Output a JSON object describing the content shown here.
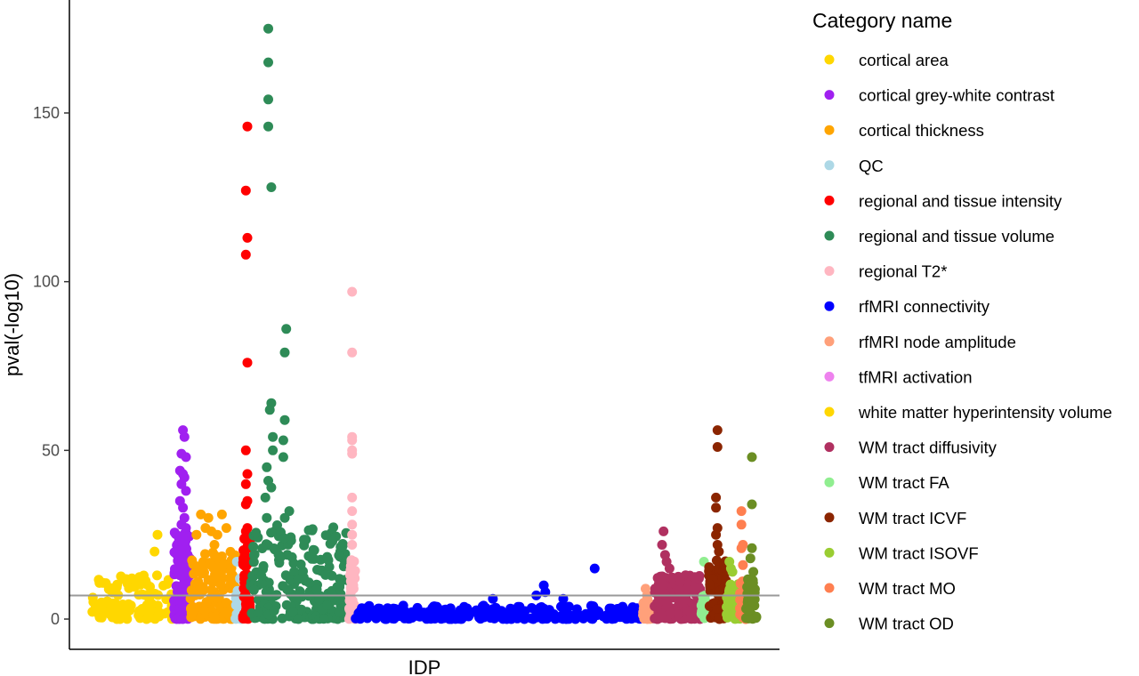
{
  "chart_data": {
    "type": "scatter",
    "subtype": "manhattan",
    "xlabel": "IDP",
    "ylabel": "pval(-log10)",
    "ylim": [
      -4,
      178
    ],
    "yticks": [
      0,
      50,
      100,
      150
    ],
    "threshold": 7,
    "threshold_color": "#999999",
    "grid": false,
    "legend": {
      "title": "Category name",
      "position": "right"
    },
    "series": [
      {
        "name": "cortical area",
        "color": "#FFD700",
        "x_range": [
          0,
          55
        ],
        "peaks": [
          [
            44,
            25
          ],
          [
            42,
            20
          ]
        ],
        "band_max": 13,
        "count": 110
      },
      {
        "name": "cortical grey-white contrast",
        "color": "#A020F0",
        "x_range": [
          55,
          66
        ],
        "peaks": [
          [
            61,
            56
          ],
          [
            62,
            54
          ],
          [
            60,
            49
          ],
          [
            63,
            48
          ],
          [
            59,
            44
          ],
          [
            61,
            43
          ],
          [
            62,
            42
          ],
          [
            60,
            40
          ],
          [
            63,
            38
          ],
          [
            59,
            35
          ],
          [
            61,
            33
          ],
          [
            62,
            30
          ],
          [
            60,
            28
          ],
          [
            63,
            27
          ]
        ],
        "band_max": 26,
        "count": 140
      },
      {
        "name": "cortical thickness",
        "color": "#FFA500",
        "x_range": [
          66,
          96
        ],
        "peaks": [
          [
            73,
            31
          ],
          [
            78,
            30
          ],
          [
            87,
            31
          ],
          [
            76,
            27
          ],
          [
            80,
            26
          ],
          [
            84,
            25
          ],
          [
            70,
            25
          ],
          [
            90,
            27
          ],
          [
            82,
            22
          ]
        ],
        "band_max": 20,
        "count": 140
      },
      {
        "name": "QC",
        "color": "#ADD8E6",
        "x_range": [
          96,
          101
        ],
        "peaks": [
          [
            97,
            17
          ],
          [
            99,
            12
          ]
        ],
        "band_max": 10,
        "count": 18
      },
      {
        "name": "regional and tissue intensity",
        "color": "#FF0000",
        "x_range": [
          101,
          106
        ],
        "peaks": [
          [
            104,
            146
          ],
          [
            103,
            127
          ],
          [
            104,
            113
          ],
          [
            103,
            108
          ],
          [
            104,
            76
          ],
          [
            103,
            50
          ],
          [
            104,
            43
          ],
          [
            103,
            40
          ],
          [
            104,
            35
          ],
          [
            103,
            34
          ],
          [
            104,
            27
          ],
          [
            103,
            26
          ]
        ],
        "band_max": 25,
        "count": 70
      },
      {
        "name": "regional and tissue volume",
        "color": "#2E8B57",
        "x_range": [
          106,
          172
        ],
        "peaks": [
          [
            118,
            175
          ],
          [
            118,
            165
          ],
          [
            118,
            154
          ],
          [
            118,
            146
          ],
          [
            120,
            128
          ],
          [
            130,
            86
          ],
          [
            129,
            79
          ],
          [
            120,
            64
          ],
          [
            119,
            62
          ],
          [
            129,
            59
          ],
          [
            121,
            54
          ],
          [
            128,
            53
          ],
          [
            121,
            50
          ],
          [
            128,
            48
          ],
          [
            117,
            45
          ],
          [
            118,
            41
          ],
          [
            120,
            39
          ],
          [
            116,
            36
          ],
          [
            132,
            32
          ],
          [
            129,
            30
          ],
          [
            117,
            30
          ]
        ],
        "band_max": 28,
        "count": 230
      },
      {
        "name": "regional T2*",
        "color": "#FFB6C1",
        "x_range": [
          172,
          176
        ],
        "peaks": [
          [
            174,
            97
          ],
          [
            174,
            79
          ],
          [
            174,
            54
          ],
          [
            174,
            53
          ],
          [
            174,
            50
          ],
          [
            174,
            49
          ],
          [
            174,
            36
          ],
          [
            174,
            32
          ],
          [
            174,
            28
          ],
          [
            174,
            25
          ],
          [
            174,
            22
          ]
        ],
        "band_max": 20,
        "count": 50
      },
      {
        "name": "rfMRI connectivity",
        "color": "#0000FF",
        "x_range": [
          176,
          368
        ],
        "peaks": [
          [
            336,
            15
          ],
          [
            302,
            10
          ],
          [
            303,
            8
          ],
          [
            297,
            7
          ],
          [
            268,
            6
          ],
          [
            315,
            6
          ]
        ],
        "band_max": 4,
        "count": 260
      },
      {
        "name": "rfMRI node amplitude",
        "color": "#FFA07A",
        "x_range": [
          368,
          374
        ],
        "peaks": [
          [
            370,
            9
          ],
          [
            371,
            7
          ]
        ],
        "band_max": 6,
        "count": 25
      },
      {
        "name": "tfMRI activation",
        "color": "#EE82EE",
        "x_range": [
          374,
          375
        ],
        "peaks": [],
        "band_max": 1,
        "count": 0
      },
      {
        "name": "white matter hyperintensity volume",
        "color": "#FFD700",
        "x_range": [
          375,
          376
        ],
        "peaks": [],
        "band_max": 1,
        "count": 0
      },
      {
        "name": "WM tract diffusivity",
        "color": "#B03060",
        "x_range": [
          376,
          407
        ],
        "peaks": [
          [
            382,
            26
          ],
          [
            381,
            22
          ],
          [
            383,
            19
          ],
          [
            384,
            17
          ],
          [
            386,
            15
          ]
        ],
        "band_max": 13,
        "count": 150
      },
      {
        "name": "WM tract FA",
        "color": "#90EE90",
        "x_range": [
          407,
          412
        ],
        "peaks": [
          [
            409,
            17
          ]
        ],
        "band_max": 7,
        "count": 20
      },
      {
        "name": "WM tract ICVF",
        "color": "#8B2500",
        "x_range": [
          412,
          424
        ],
        "peaks": [
          [
            418,
            56
          ],
          [
            418,
            51
          ],
          [
            417,
            36
          ],
          [
            417,
            33
          ],
          [
            418,
            27
          ],
          [
            417,
            25
          ],
          [
            418,
            22
          ],
          [
            419,
            20
          ]
        ],
        "band_max": 18,
        "count": 80
      },
      {
        "name": "WM tract ISOVF",
        "color": "#9ACD32",
        "x_range": [
          424,
          433
        ],
        "peaks": [
          [
            426,
            17
          ],
          [
            427,
            15
          ],
          [
            428,
            14
          ]
        ],
        "band_max": 11,
        "count": 50
      },
      {
        "name": "WM tract MO",
        "color": "#FF7F50",
        "x_range": [
          433,
          437
        ],
        "peaks": [
          [
            434,
            32
          ],
          [
            434,
            28
          ],
          [
            435,
            22
          ],
          [
            434,
            21
          ],
          [
            435,
            16
          ]
        ],
        "band_max": 12,
        "count": 25
      },
      {
        "name": "WM tract OD",
        "color": "#6B8E23",
        "x_range": [
          437,
          444
        ],
        "peaks": [
          [
            441,
            48
          ],
          [
            441,
            34
          ],
          [
            441,
            21
          ],
          [
            440,
            18
          ],
          [
            442,
            14
          ]
        ],
        "band_max": 12,
        "count": 50
      }
    ]
  }
}
